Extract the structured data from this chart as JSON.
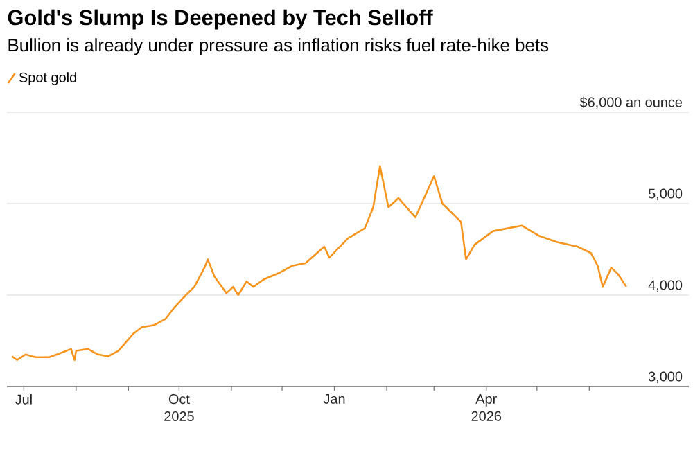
{
  "chart_data": {
    "type": "line",
    "title": "Gold's Slump Is Deepened by Tech Selloff",
    "subtitle": "Bullion is already under pressure as inflation risks fuel rate-hike bets",
    "x": [
      "2025-06-24",
      "2025-06-27",
      "2025-07-02",
      "2025-07-08",
      "2025-07-16",
      "2025-07-22",
      "2025-07-29",
      "2025-07-31",
      "2025-08-01",
      "2025-08-08",
      "2025-08-14",
      "2025-08-20",
      "2025-08-26",
      "2025-09-04",
      "2025-09-09",
      "2025-09-16",
      "2025-09-23",
      "2025-09-28",
      "2025-10-05",
      "2025-10-10",
      "2025-10-16",
      "2025-10-18",
      "2025-10-22",
      "2025-10-29",
      "2025-11-02",
      "2025-11-05",
      "2025-11-10",
      "2025-11-14",
      "2025-11-20",
      "2025-11-29",
      "2025-12-07",
      "2025-12-15",
      "2025-12-26",
      "2025-12-29",
      "2026-01-09",
      "2026-01-19",
      "2026-01-24",
      "2026-01-28",
      "2026-02-02",
      "2026-02-08",
      "2026-02-18",
      "2026-03-01",
      "2026-03-06",
      "2026-03-17",
      "2026-03-20",
      "2026-03-25",
      "2026-04-05",
      "2026-04-22",
      "2026-05-02",
      "2026-05-13",
      "2026-05-25",
      "2026-06-02",
      "2026-06-06",
      "2026-06-09",
      "2026-06-14",
      "2026-06-18",
      "2026-06-23"
    ],
    "series": [
      {
        "name": "Spot gold",
        "color": "#f7941d",
        "values": [
          3330,
          3290,
          3350,
          3320,
          3320,
          3360,
          3410,
          3290,
          3390,
          3410,
          3350,
          3330,
          3390,
          3580,
          3650,
          3670,
          3740,
          3860,
          4000,
          4090,
          4300,
          4390,
          4200,
          4020,
          4090,
          4000,
          4150,
          4090,
          4170,
          4240,
          4320,
          4350,
          4530,
          4410,
          4620,
          4730,
          4960,
          5410,
          4960,
          5060,
          4850,
          5300,
          5000,
          4800,
          4390,
          4550,
          4700,
          4760,
          4650,
          4580,
          4530,
          4460,
          4320,
          4090,
          4300,
          4230,
          4090
        ]
      }
    ],
    "xlim": [
      "2025-06-21",
      "2026-07-30"
    ],
    "xticks": [
      {
        "value": "2025-07-01",
        "label": "Jul"
      },
      {
        "value": "2025-08-01",
        "label": null
      },
      {
        "value": "2025-09-01",
        "label": null
      },
      {
        "value": "2025-10-01",
        "label": "Oct 2025"
      },
      {
        "value": "2025-11-01",
        "label": null
      },
      {
        "value": "2025-12-01",
        "label": null
      },
      {
        "value": "2026-01-01",
        "label": "Jan"
      },
      {
        "value": "2026-02-01",
        "label": null
      },
      {
        "value": "2026-03-01",
        "label": null
      },
      {
        "value": "2026-04-01",
        "label": "Apr 2026"
      },
      {
        "value": "2026-05-01",
        "label": null
      },
      {
        "value": "2026-06-01",
        "label": null
      }
    ],
    "ylim": [
      3000,
      6000
    ],
    "yticks": [
      {
        "value": 3000,
        "label": "3,000"
      },
      {
        "value": 4000,
        "label": "4,000"
      },
      {
        "value": 5000,
        "label": "5,000"
      },
      {
        "value": 6000,
        "label": "$6,000 an ounce"
      }
    ],
    "grid": "y",
    "legend": "top left",
    "marker": "none",
    "line_style": "solid"
  }
}
